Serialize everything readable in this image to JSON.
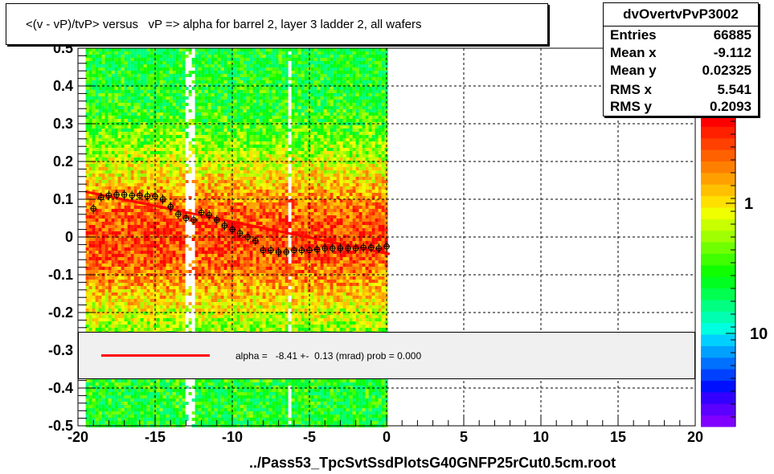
{
  "title": "<(v - vP)/tvP> versus   vP => alpha for barrel 2, layer 3 ladder 2, all wafers",
  "footer": "../Pass53_TpcSvtSsdPlotsG40GNFP25rCut0.5cm.root",
  "stats": {
    "name": "dvOvertvPvP3002",
    "rows": [
      {
        "key": "Entries",
        "value": "66885"
      },
      {
        "key": "Mean x",
        "value": "-9.112"
      },
      {
        "key": "Mean y",
        "value": "0.02325"
      },
      {
        "key": "RMS x",
        "value": "5.541"
      },
      {
        "key": "RMS y",
        "value": "0.2093"
      }
    ]
  },
  "legend": {
    "text": "alpha =   -8.41 +-  0.13 (mrad) prob = 0.000",
    "line_color": "#ff0000"
  },
  "chart_data": {
    "type": "heatmap",
    "xlim": [
      -20,
      20
    ],
    "ylim": [
      -0.5,
      0.5
    ],
    "x_ticks": [
      -20,
      -15,
      -10,
      -5,
      0,
      5,
      10,
      15,
      20
    ],
    "x_tick_labels": [
      "-20",
      "-15",
      "-10",
      "-5",
      "0",
      "5",
      "10",
      "15",
      "20"
    ],
    "y_ticks": [
      -0.5,
      -0.4,
      -0.3,
      -0.2,
      -0.1,
      0,
      0.1,
      0.2,
      0.3,
      0.4,
      0.5
    ],
    "y_tick_labels": [
      "-0.5",
      "-0.4",
      "-0.3",
      "-0.2",
      "-0.1",
      "0",
      "0.1",
      "0.2",
      "0.3",
      "0.4",
      "0.5"
    ],
    "grid": true,
    "filled_x_range": [
      -19.5,
      0
    ],
    "color_scale": {
      "log": true,
      "labels": [
        "1",
        "10"
      ],
      "colors": [
        "#7f00ff",
        "#5a00ff",
        "#3300ff",
        "#0010ff",
        "#0040ff",
        "#0070ff",
        "#00a0ff",
        "#00d0ff",
        "#00ffe0",
        "#00ffb0",
        "#00ff80",
        "#00ff50",
        "#00ff20",
        "#10ff00",
        "#40ff00",
        "#70ff00",
        "#a0ff00",
        "#c8ff00",
        "#f0ff00",
        "#ffe000",
        "#ffc000",
        "#ffa000",
        "#ff8000",
        "#ff6000",
        "#ff4000",
        "#ff2000",
        "#ff0000"
      ]
    },
    "profile_points": {
      "x": [
        -19.0,
        -18.5,
        -18.0,
        -17.5,
        -17.0,
        -16.5,
        -16.0,
        -15.5,
        -15.0,
        -14.5,
        -14.0,
        -13.5,
        -13.0,
        -12.5,
        -12.0,
        -11.5,
        -11.0,
        -10.5,
        -10.0,
        -9.5,
        -9.0,
        -8.5,
        -8.0,
        -7.5,
        -7.0,
        -6.5,
        -6.0,
        -5.5,
        -5.0,
        -4.5,
        -4.0,
        -3.5,
        -3.0,
        -2.5,
        -2.0,
        -1.5,
        -1.0,
        -0.5,
        0.0
      ],
      "y": [
        0.075,
        0.105,
        0.11,
        0.112,
        0.112,
        0.11,
        0.11,
        0.108,
        0.108,
        0.1,
        0.08,
        0.06,
        0.05,
        0.045,
        0.065,
        0.058,
        0.045,
        0.03,
        0.02,
        0.01,
        0.0,
        -0.01,
        -0.035,
        -0.035,
        -0.04,
        -0.04,
        -0.035,
        -0.035,
        -0.035,
        -0.033,
        -0.03,
        -0.03,
        -0.03,
        -0.03,
        -0.03,
        -0.028,
        -0.028,
        -0.03,
        -0.025
      ]
    },
    "fit_line": {
      "x": [
        -19.5,
        0.2
      ],
      "y": [
        0.12,
        -0.045
      ],
      "color": "#ff0000"
    }
  }
}
